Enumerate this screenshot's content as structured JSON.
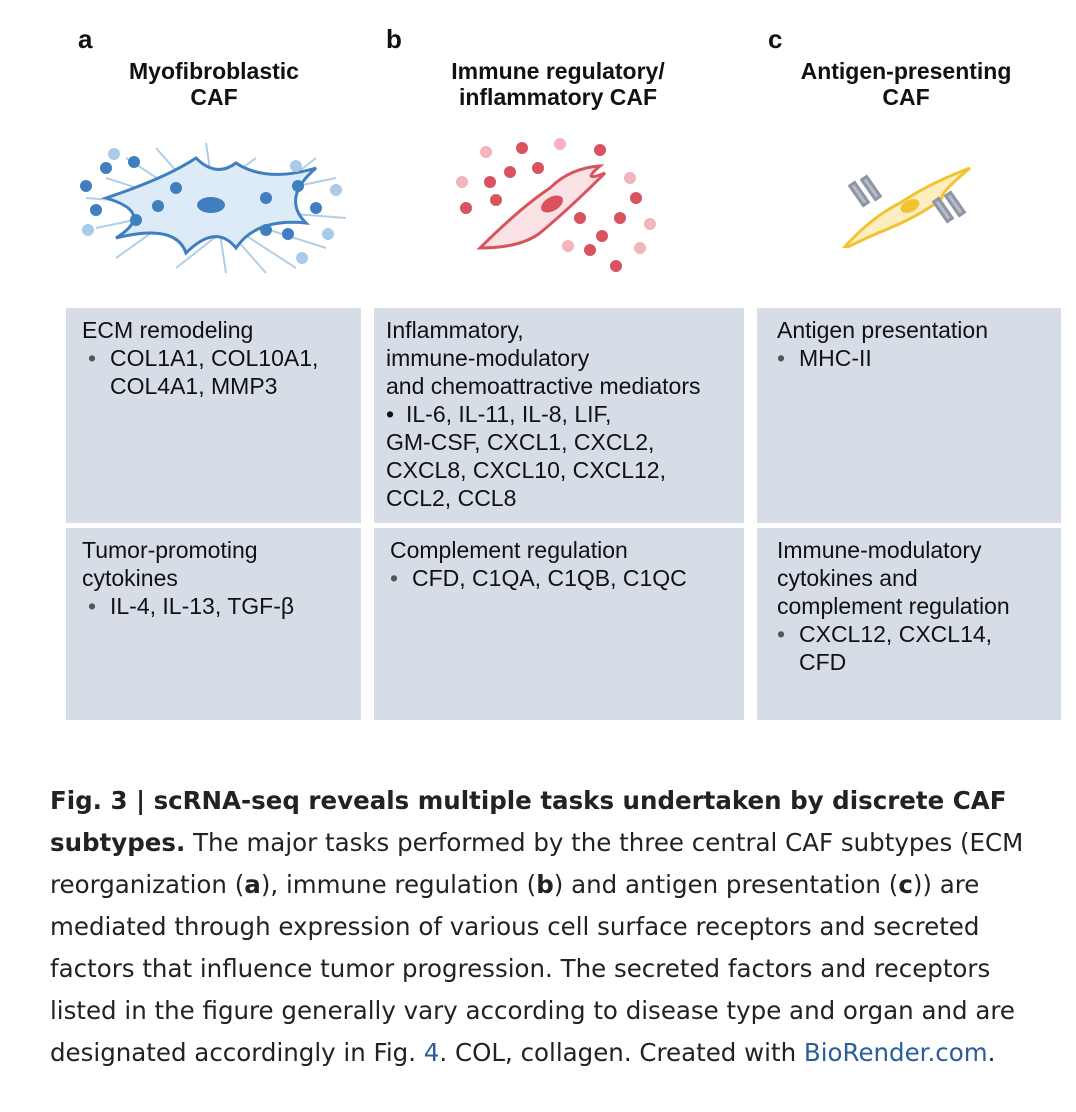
{
  "columns": [
    {
      "letter": "a",
      "title": "Myofibroblastic\nCAF",
      "illustration": "myofibroblast-cell-icon",
      "box1": {
        "heading": "ECM remodeling",
        "bullet": "•",
        "items": "COL1A1, COL10A1,\nCOL4A1, MMP3"
      },
      "box2": {
        "heading": "Tumor-promoting\ncytokines",
        "bullet": "•",
        "items": "IL-4, IL-13, TGF-β"
      }
    },
    {
      "letter": "b",
      "title": "Immune regulatory/\ninflammatory CAF",
      "illustration": "inflammatory-cell-icon",
      "box1": {
        "heading": "Inflammatory,\nimmune-modulatory\nand chemoattractive mediators",
        "bullet": "•",
        "items_first": "IL-6, IL-11, IL-8, LIF,",
        "items_rest": "GM-CSF, CXCL1, CXCL2,\nCXCL8, CXCL10, CXCL12,\nCCL2, CCL8"
      },
      "box2": {
        "heading": "Complement regulation",
        "bullet": "•",
        "items": "CFD, C1QA, C1QB, C1QC"
      }
    },
    {
      "letter": "c",
      "title": "Antigen-presenting\nCAF",
      "illustration": "antigen-presenting-cell-icon",
      "box1": {
        "heading": "Antigen presentation",
        "bullet": "•",
        "items": "MHC-II"
      },
      "box2": {
        "heading": "Immune-modulatory\ncytokines and\ncomplement regulation",
        "bullet": "•",
        "items": "CXCL12, CXCL14,\nCFD"
      }
    }
  ],
  "caption": {
    "fig_label": "Fig. 3 | scRNA-seq reveals multiple tasks undertaken by discrete CAF subtypes.",
    "t1": " The major tasks performed by the three central CAF subtypes (ECM reorganization (",
    "a": "a",
    "t2": "), immune regulation (",
    "b": "b",
    "t3": ") and antigen presentation (",
    "c": "c",
    "t4": ")) are mediated through expression of various cell surface receptors and secreted factors that influence tumor progression. The secreted factors and receptors listed in the figure generally vary according to disease type and organ and are designated accordingly in Fig. ",
    "fig_ref": "4",
    "t5": ". COL, collagen. Created with ",
    "link": "BioRender.com",
    "t6": "."
  },
  "colors": {
    "box_bg": "#d7dde7",
    "blue": "#3f7fbf",
    "red": "#d9535f",
    "yellow": "#f2c232",
    "link": "#2a5d9a"
  }
}
